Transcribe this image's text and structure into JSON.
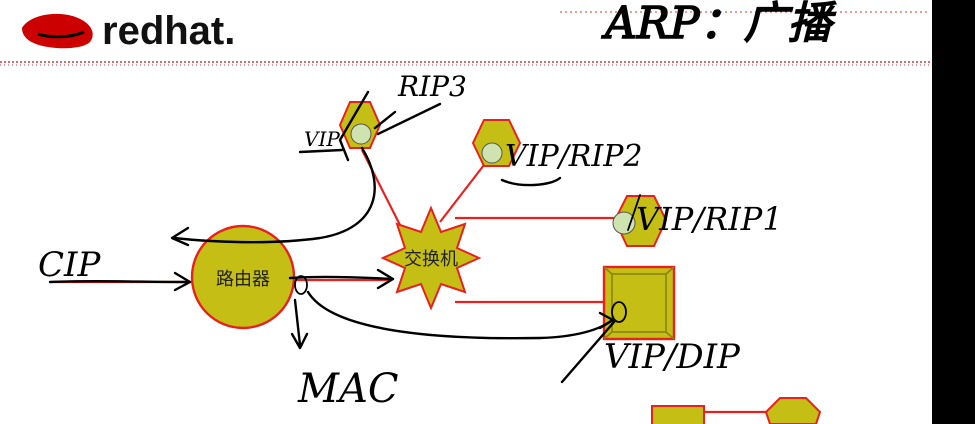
{
  "brand": {
    "logo_text": "redhat."
  },
  "nodes": {
    "router": "路由器",
    "switch": "交换机"
  },
  "annotations": {
    "arp_broadcast": "ARP：广播",
    "cip": "CIP",
    "mac": "MAC",
    "rip3": "RIP3",
    "vip_left": "VIP",
    "vip_rip2": "VIP/RIP2",
    "vip_rip1": "VIP/RIP1",
    "vip_dip": "VIP/DIP"
  },
  "colors": {
    "node_fill": "#c5be14",
    "node_stroke": "#e8211f",
    "link": "#e8211f",
    "logo_red": "#cc0000",
    "ink": "#000000"
  }
}
